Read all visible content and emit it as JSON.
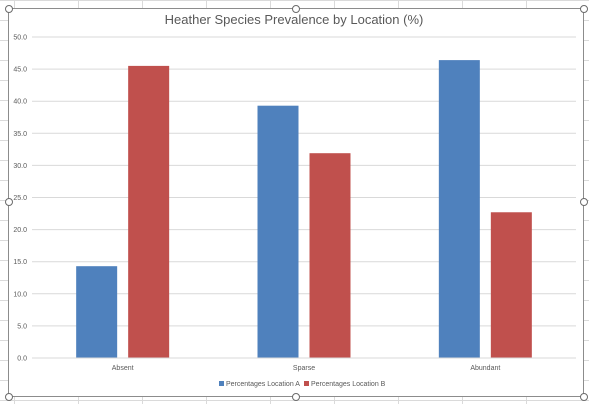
{
  "chart_data": {
    "type": "bar",
    "title": "Heather Species Prevalence by Location (%)",
    "xlabel": "",
    "ylabel": "",
    "categories": [
      "Absent",
      "Sparse",
      "Abundant"
    ],
    "series": [
      {
        "name": "Percentages Location A",
        "values": [
          14.3,
          39.3,
          46.4
        ],
        "color": "#4f81bd"
      },
      {
        "name": "Percentages Location B",
        "values": [
          45.5,
          31.9,
          22.7
        ],
        "color": "#c0504d"
      }
    ],
    "ylim": [
      0,
      50
    ],
    "yticks": [
      "0.0",
      "5.0",
      "10.0",
      "15.0",
      "20.0",
      "25.0",
      "30.0",
      "35.0",
      "40.0",
      "45.0",
      "50.0"
    ],
    "grid": true,
    "legend_position": "bottom"
  }
}
